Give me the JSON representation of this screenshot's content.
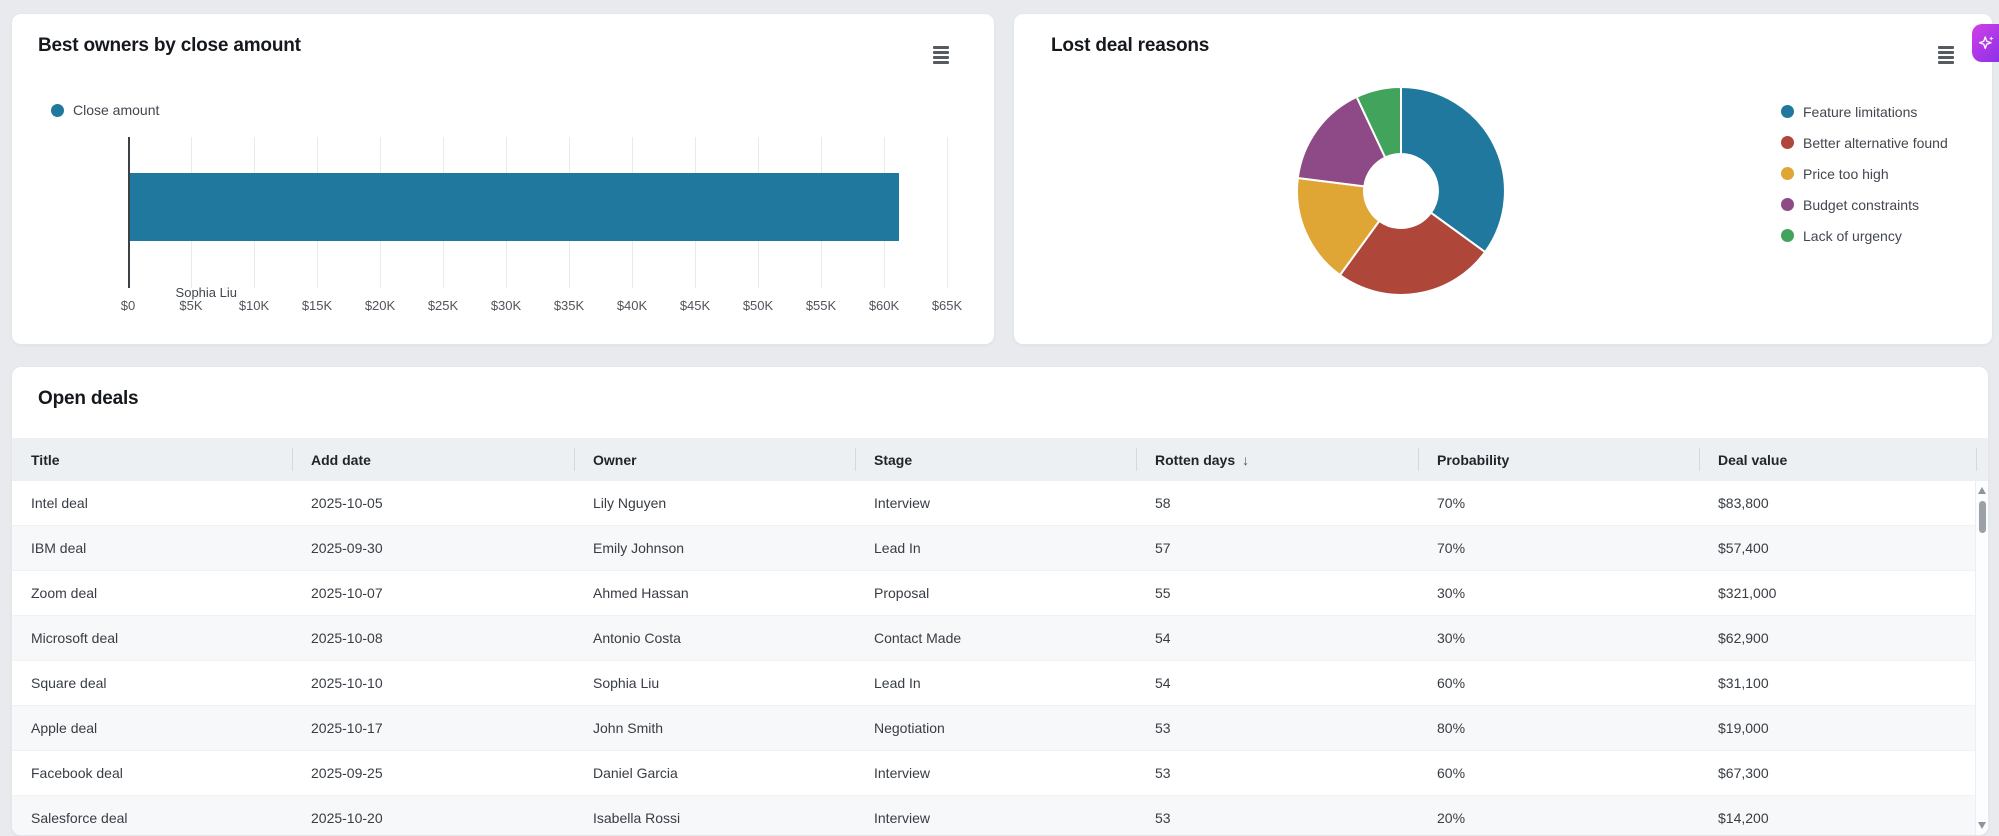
{
  "cards": {
    "bar_card": {
      "title": "Best owners by close amount"
    },
    "donut_card": {
      "title": "Lost deal reasons"
    },
    "table_card": {
      "title": "Open deals"
    }
  },
  "icons": {
    "card_menu": "hamburger-icon",
    "ai_assist": "sparkle-icon",
    "scroll_up": "triangle-up",
    "scroll_down": "triangle-down"
  },
  "chart_data": [
    {
      "type": "bar",
      "orientation": "horizontal",
      "title": "Best owners by close amount",
      "legend": [
        {
          "label": "Close amount",
          "color": "#20789f"
        }
      ],
      "categories": [
        "Sophia Liu"
      ],
      "values": [
        61000
      ],
      "bar_color": "#20789f",
      "xlim": [
        0,
        65000
      ],
      "tick_step": 5000,
      "x_ticks": [
        "$0",
        "$5K",
        "$10K",
        "$15K",
        "$20K",
        "$25K",
        "$30K",
        "$35K",
        "$40K",
        "$45K",
        "$50K",
        "$55K",
        "$60K",
        "$65K"
      ],
      "grid": true,
      "legend_position": "top-left"
    },
    {
      "type": "pie",
      "donut": true,
      "title": "Lost deal reasons",
      "legend_position": "right",
      "slices": [
        {
          "label": "Feature limitations",
          "value": 35,
          "color": "#20789f"
        },
        {
          "label": "Better alternative found",
          "value": 25,
          "color": "#ae4639"
        },
        {
          "label": "Price too high",
          "value": 17,
          "color": "#dfa636"
        },
        {
          "label": "Budget constraints",
          "value": 16,
          "color": "#8e4a87"
        },
        {
          "label": "Lack of urgency",
          "value": 7,
          "color": "#42a35c"
        }
      ]
    }
  ],
  "table": {
    "title": "Open deals",
    "sort_indicator": "↓",
    "columns": [
      {
        "label": "Title"
      },
      {
        "label": "Add date"
      },
      {
        "label": "Owner"
      },
      {
        "label": "Stage"
      },
      {
        "label": "Rotten days",
        "sorted": "desc"
      },
      {
        "label": "Probability"
      },
      {
        "label": "Deal value"
      }
    ],
    "rows": [
      [
        "Intel deal",
        "2025-10-05",
        "Lily Nguyen",
        "Interview",
        "58",
        "70%",
        "$83,800"
      ],
      [
        "IBM deal",
        "2025-09-30",
        "Emily Johnson",
        "Lead In",
        "57",
        "70%",
        "$57,400"
      ],
      [
        "Zoom deal",
        "2025-10-07",
        "Ahmed Hassan",
        "Proposal",
        "55",
        "30%",
        "$321,000"
      ],
      [
        "Microsoft deal",
        "2025-10-08",
        "Antonio Costa",
        "Contact Made",
        "54",
        "30%",
        "$62,900"
      ],
      [
        "Square deal",
        "2025-10-10",
        "Sophia Liu",
        "Lead In",
        "54",
        "60%",
        "$31,100"
      ],
      [
        "Apple deal",
        "2025-10-17",
        "John Smith",
        "Negotiation",
        "53",
        "80%",
        "$19,000"
      ],
      [
        "Facebook deal",
        "2025-09-25",
        "Daniel Garcia",
        "Interview",
        "53",
        "60%",
        "$67,300"
      ],
      [
        "Salesforce deal",
        "2025-10-20",
        "Isabella Rossi",
        "Interview",
        "53",
        "20%",
        "$14,200"
      ]
    ]
  },
  "colors": {
    "page_bg": "#e8eaed",
    "card_bg": "#ffffff",
    "header_bg": "#edf0f3",
    "stripe_bg": "#f6f8f9",
    "accent_blue": "#20789f",
    "ai_gradient_start": "#d23fe8",
    "ai_gradient_end": "#8b31e8"
  }
}
